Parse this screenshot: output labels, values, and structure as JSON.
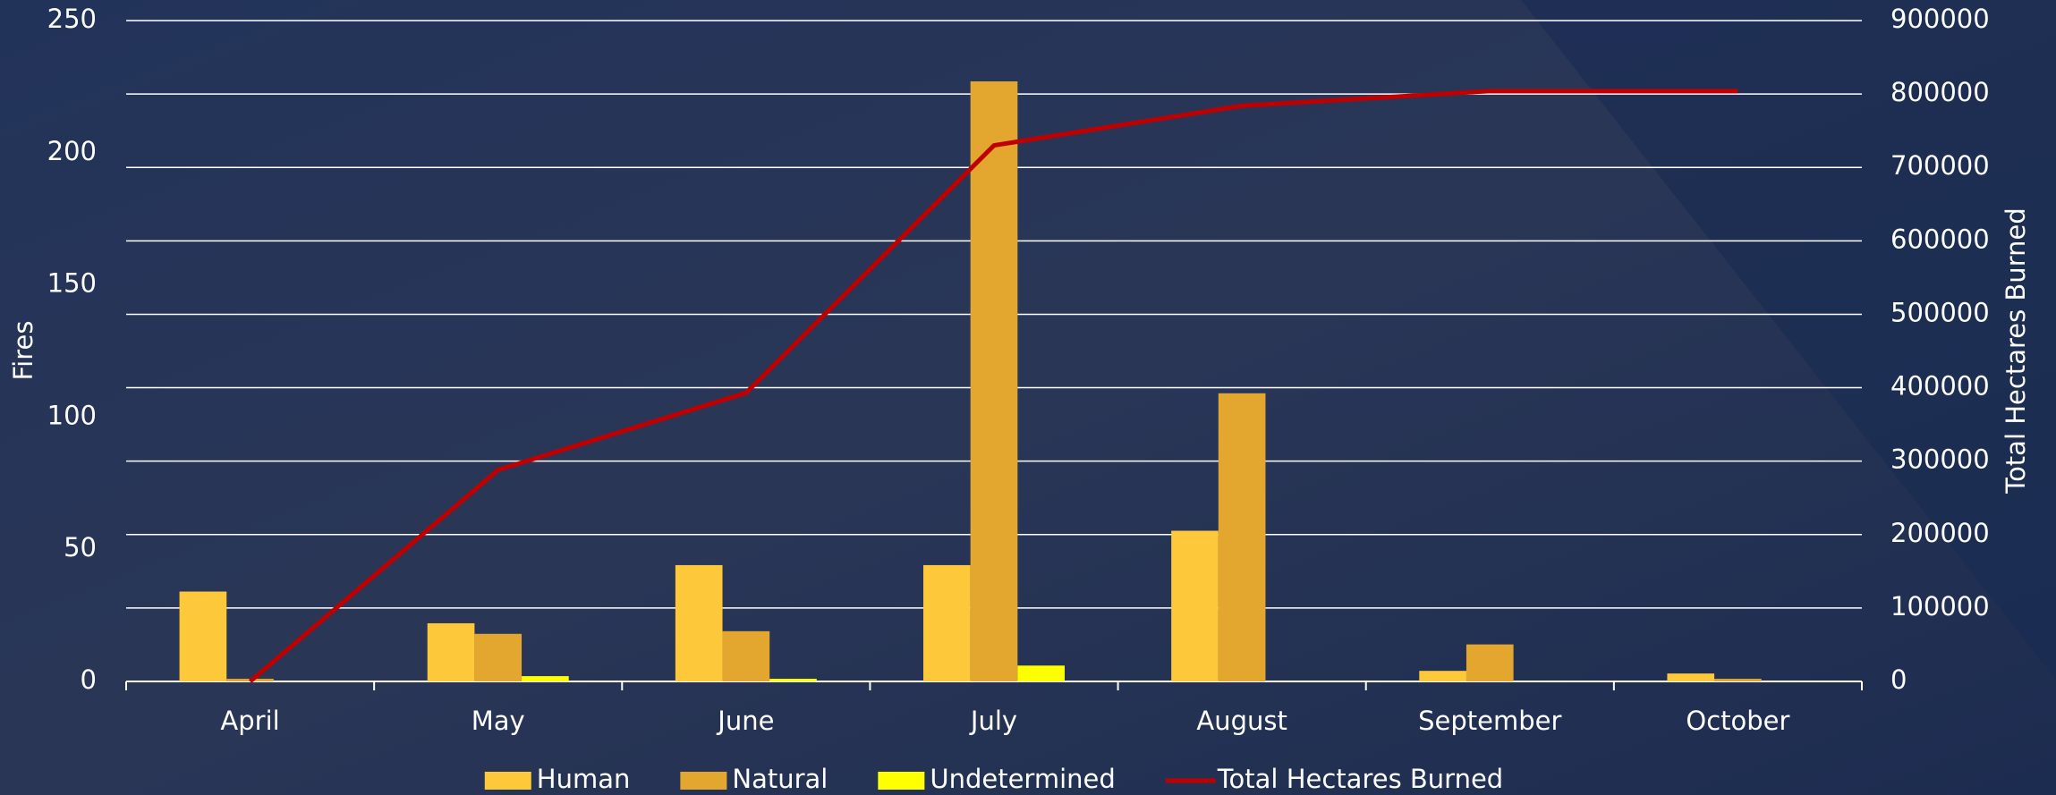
{
  "chart_data": {
    "type": "bar",
    "categories": [
      "April",
      "May",
      "June",
      "July",
      "August",
      "September",
      "October"
    ],
    "series": [
      {
        "name": "Human",
        "color": "#fdc93a",
        "values": [
          34,
          22,
          44,
          44,
          57,
          4,
          3
        ]
      },
      {
        "name": "Natural",
        "color": "#e3a72f",
        "values": [
          1,
          18,
          19,
          227,
          109,
          14,
          1
        ]
      },
      {
        "name": "Undetermined",
        "color": "#ffff00",
        "values": [
          0,
          2,
          1,
          6,
          0,
          0,
          0
        ]
      },
      {
        "name": "Total Hectares Burned",
        "color": "#c00000",
        "type": "line",
        "axis": "y2",
        "values": [
          0,
          288000,
          393000,
          730000,
          784000,
          804000,
          804000
        ]
      }
    ],
    "y_label": "Fires",
    "y2_label": "Total Hectares Burned",
    "ylim": [
      0,
      250
    ],
    "yticks": [
      0,
      50,
      100,
      150,
      200,
      250
    ],
    "y2lim": [
      0,
      900000
    ],
    "y2ticks": [
      0,
      100000,
      200000,
      300000,
      400000,
      500000,
      600000,
      700000,
      800000,
      900000
    ],
    "grid": true,
    "legend": "bottom"
  }
}
